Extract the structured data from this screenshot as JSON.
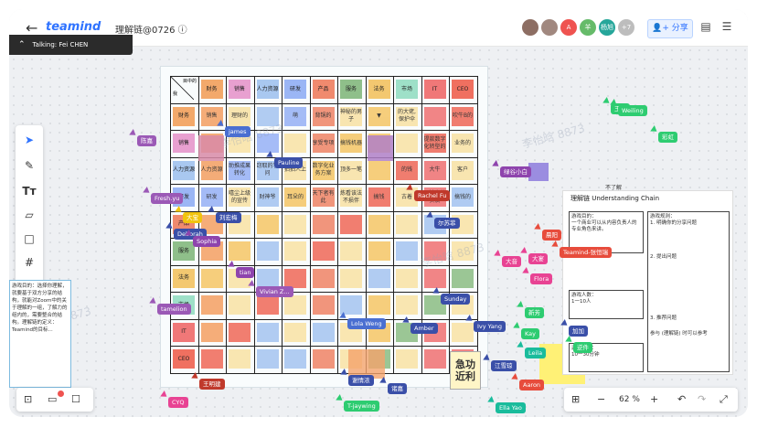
{
  "app": {
    "logo": "teamind",
    "doc_title": "理解链@0726",
    "share_label": "分享",
    "info_icon": "ⓘ"
  },
  "talking": {
    "label": "Talking: Fei CHEN"
  },
  "avatars": [
    {
      "text": "",
      "color": "#8d6e63"
    },
    {
      "text": "",
      "color": "#a1887f"
    },
    {
      "text": "A",
      "color": "#ef5350"
    },
    {
      "text": "羊",
      "color": "#66bb6a"
    },
    {
      "text": "杨旭",
      "color": "#26a69a"
    },
    {
      "text": "+7",
      "color": "#bdbdbd"
    }
  ],
  "board": {
    "header_row": [
      "财务",
      "销售",
      "人力资源",
      "研发",
      "产品",
      "服务",
      "法务",
      "市场",
      "IT",
      "CEO"
    ],
    "header_colors": [
      "#f3a96b",
      "#e8a0d0",
      "#a9c8f0",
      "#9bb6f5",
      "#f08a6e",
      "#8fbf8a",
      "#f3c870",
      "#9ee0c8",
      "#f07878",
      "#f07060"
    ],
    "corner_top": "目中的",
    "corner_bottom": "我"
  },
  "grid_texts": {
    "r1": [
      "销售",
      "理财的",
      "",
      "萌",
      "背锅的",
      "神秘的男子",
      "▼",
      "的大佬,保护伞",
      "",
      "吹牛B的"
    ],
    "r2": [
      "",
      "",
      "",
      "",
      "享受专项",
      "搞钱机器",
      "",
      "",
      "提款数字化转型的",
      "业务的"
    ],
    "r3": [
      "人力资源",
      "助推成果转化",
      "窃取的学问",
      "拍拍人上",
      "数字化业务方案",
      "顶多一笔",
      "",
      "的钱",
      "大牛",
      "客户"
    ],
    "r4": [
      "研发",
      "嘻尘上级的宣传",
      "财神爷",
      "耳朵的",
      "天下者有此",
      "炼看该法不损伴",
      "搞钱",
      "古着",
      "无法者的实质",
      "搞钱的"
    ],
    "r5": [
      "",
      "",
      "",
      "",
      "",
      "",
      "",
      "",
      "",
      ""
    ],
    "r6": [
      "",
      "",
      "",
      "",
      "",
      "",
      "",
      "",
      "",
      ""
    ],
    "r7": [
      "",
      "",
      "",
      "",
      "",
      "",
      "",
      "",
      "",
      ""
    ],
    "r8": [
      "",
      "",
      "",
      "",
      "",
      "",
      "",
      "",
      "",
      ""
    ],
    "r9": [
      "",
      "",
      "",
      "",
      "",
      "",
      "",
      "",
      "",
      ""
    ],
    "r10": [
      "",
      "",
      "",
      "",
      "",
      "",
      "",
      "",
      "",
      ""
    ]
  },
  "cursors": [
    {
      "name": "Talking: Fei CHEN",
      "color": "#2b2b2b"
    },
    {
      "name": "james",
      "color": "#4a6fd1"
    },
    {
      "name": "Pauline",
      "color": "#3a4fa8"
    },
    {
      "name": "Fresh.yu",
      "color": "#9b59b6"
    },
    {
      "name": "刘宏梅",
      "color": "#3a4fa8"
    },
    {
      "name": "Deborah",
      "color": "#3a4fa8"
    },
    {
      "name": "Sophia",
      "color": "#8e44ad"
    },
    {
      "name": "Rachel Fu",
      "color": "#c0392b"
    },
    {
      "name": "尔苏菲",
      "color": "#3a4fa8"
    },
    {
      "name": "Sunday",
      "color": "#3a4fa8"
    },
    {
      "name": "Ivy Yang",
      "color": "#3a4fa8"
    },
    {
      "name": "Lola Weng",
      "color": "#4a6fd1"
    },
    {
      "name": "Amber",
      "color": "#3a4fa8"
    },
    {
      "name": "tamelion",
      "color": "#9b59b6"
    },
    {
      "name": "tian",
      "color": "#8e44ad"
    },
    {
      "name": "Vivian Z...",
      "color": "#9b59b6"
    },
    {
      "name": "王明建",
      "color": "#c0392b"
    },
    {
      "name": "谢情浓",
      "color": "#3a4fa8"
    },
    {
      "name": "诸嘉",
      "color": "#3a4fa8"
    },
    {
      "name": "CYQ",
      "color": "#e84393"
    },
    {
      "name": "T-jaywing",
      "color": "#2ecc71"
    },
    {
      "name": "Ella Yao",
      "color": "#1abc9c"
    },
    {
      "name": "Aaron",
      "color": "#e74c3c"
    },
    {
      "name": "Leila",
      "color": "#1abc9c"
    },
    {
      "name": "江雪琼",
      "color": "#3a4fa8"
    },
    {
      "name": "Kay",
      "color": "#2ecc71"
    },
    {
      "name": "加加",
      "color": "#3a4fa8"
    },
    {
      "name": "大宴",
      "color": "#e84393"
    },
    {
      "name": "Flora",
      "color": "#e84393"
    },
    {
      "name": "大音",
      "color": "#e84393"
    },
    {
      "name": "Teamind-张恒瑞",
      "color": "#e74c3c"
    },
    {
      "name": "晨阳",
      "color": "#e74c3c"
    },
    {
      "name": "新芳",
      "color": "#2ecc71"
    },
    {
      "name": "逆件",
      "color": "#2ecc71"
    },
    {
      "name": "绿谷小白",
      "color": "#8e44ad"
    },
    {
      "name": "王永",
      "color": "#2ecc71"
    },
    {
      "name": "彩虹",
      "color": "#2ecc71"
    },
    {
      "name": "Weiling",
      "color": "#2ecc71"
    },
    {
      "name": "陈嘉",
      "color": "#9b59b6"
    },
    {
      "name": "大宝",
      "color": "#f1c40f"
    }
  ],
  "right_panel": {
    "top_note": "不了解",
    "title": "理解链 Understanding Chain",
    "box1_title": "游戏目的：",
    "box1_text": "一个商业可以从内容负责人的专业角色来讲。",
    "box2_title": "游戏人数：",
    "box2_text": "1一10人",
    "box3_title": "游戏时长：",
    "box3_text": "10一30分钟",
    "box4_title": "游戏规则：",
    "box4_text": "1. 明确你的分享问题",
    "box5_title": "2. 提出问题",
    "box6_title": "3. 推荐问题",
    "footer": "参与 (理解链) 时可以参考"
  },
  "left_panel": {
    "text": "游戏目的：选择你理解，就要基于双方分享的结构，就能对Zoom中的关于理解的一组，了解力的组内的，需要整合的结构。理解链的定义：Teamind的目标..."
  },
  "bottom_right": {
    "zoom": "62 %",
    "minus": "−",
    "plus": "+"
  },
  "watermark": "李怡晗 8873",
  "stickies": {
    "big_bottom": "急功近利"
  }
}
